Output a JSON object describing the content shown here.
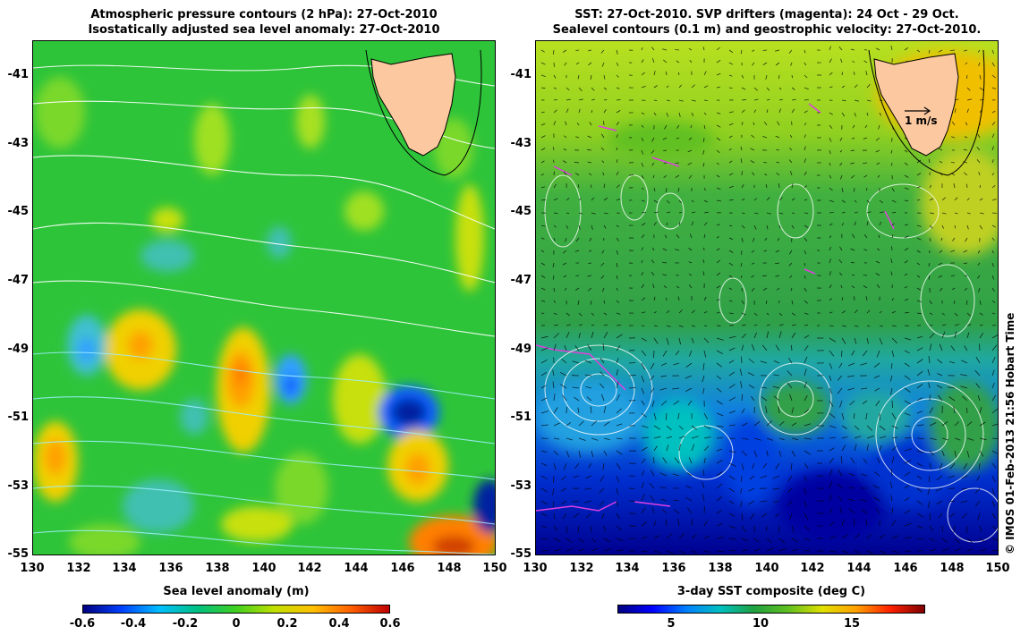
{
  "left_panel": {
    "title_line1": "Atmospheric pressure contours (2 hPa): 27-Oct-2010",
    "title_line2": "Isostatically adjusted sea level anomaly: 27-Oct-2010",
    "colorbar_title": "Sea level anomaly (m)",
    "colorbar_ticks": [
      "-0.6",
      "-0.4",
      "-0.2",
      "0",
      "0.2",
      "0.4",
      "0.6"
    ]
  },
  "right_panel": {
    "title_line1": "SST: 27-Oct-2010. SVP drifters (magenta): 24 Oct - 29 Oct.",
    "title_line2": "Sealevel contours (0.1 m) and geostrophic velocity: 27-Oct-2010.",
    "colorbar_title": "3-day SST composite (deg C)",
    "colorbar_ticks": [
      "5",
      "10",
      "15"
    ],
    "arrow_scale_label": "1 m/s"
  },
  "axes": {
    "y_ticks": [
      "-41",
      "-43",
      "-45",
      "-47",
      "-49",
      "-51",
      "-53",
      "-55"
    ],
    "x_ticks": [
      "130",
      "132",
      "134",
      "136",
      "138",
      "140",
      "142",
      "144",
      "146",
      "148",
      "150"
    ]
  },
  "credit": "© IMOS 01-Feb-2013 21:56 Hobart Time",
  "colors": {
    "land": "#fcc8a0",
    "sla_colormap": [
      "#00007f",
      "#0040ff",
      "#00bfff",
      "#00c080",
      "#40d020",
      "#c0e000",
      "#ffc000",
      "#ff6000",
      "#bf0000"
    ],
    "sst_colormap": [
      "#000080",
      "#0000ff",
      "#0080ff",
      "#00c0c0",
      "#20a040",
      "#60c020",
      "#e0e000",
      "#ffa000",
      "#ff2000",
      "#800000"
    ]
  }
}
